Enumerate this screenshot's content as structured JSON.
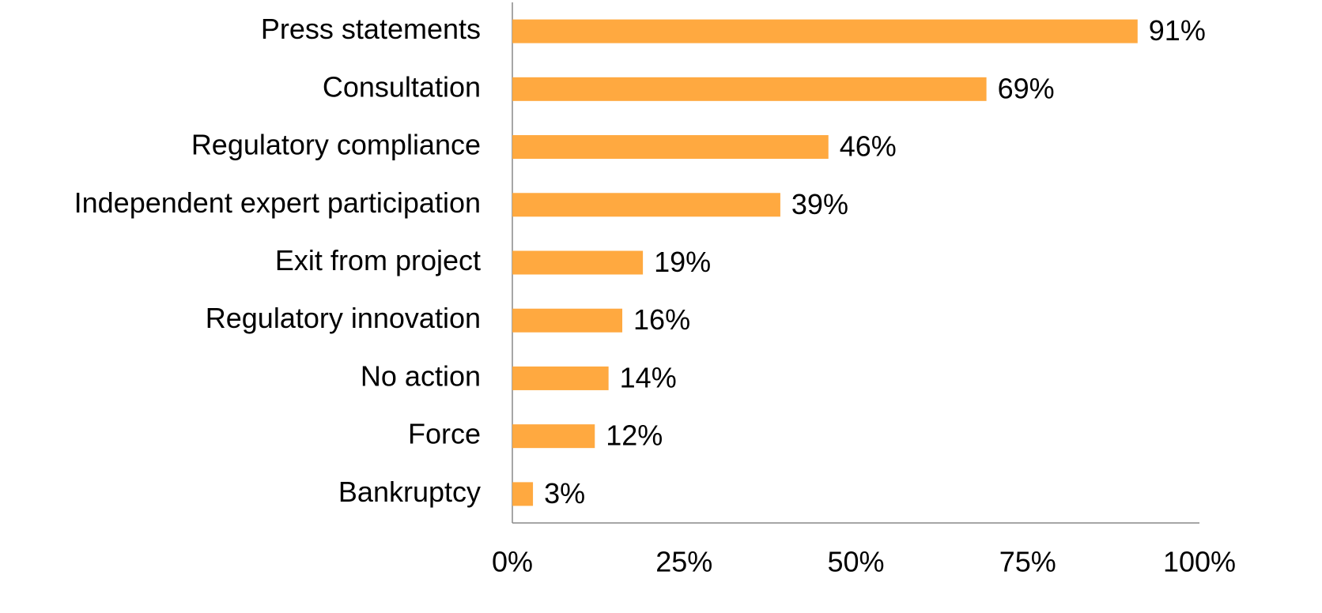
{
  "chart_data": {
    "type": "barh",
    "categories": [
      "Press statements",
      "Consultation",
      "Regulatory compliance",
      "Independent expert participation",
      "Exit from project",
      "Regulatory innovation",
      "No action",
      "Force",
      "Bankruptcy"
    ],
    "values": [
      91,
      69,
      46,
      39,
      19,
      16,
      14,
      12,
      3
    ],
    "value_labels": [
      "91%",
      "69%",
      "46%",
      "39%",
      "19%",
      "16%",
      "14%",
      "12%",
      "3%"
    ],
    "color": "#ffa940",
    "xlim": [
      0,
      100
    ],
    "xticks": [
      {
        "value": 0,
        "label": "0%"
      },
      {
        "value": 25,
        "label": "25%"
      },
      {
        "value": 50,
        "label": "50%"
      },
      {
        "value": 75,
        "label": "75%"
      },
      {
        "value": 100,
        "label": "100%"
      }
    ],
    "grid": false
  }
}
